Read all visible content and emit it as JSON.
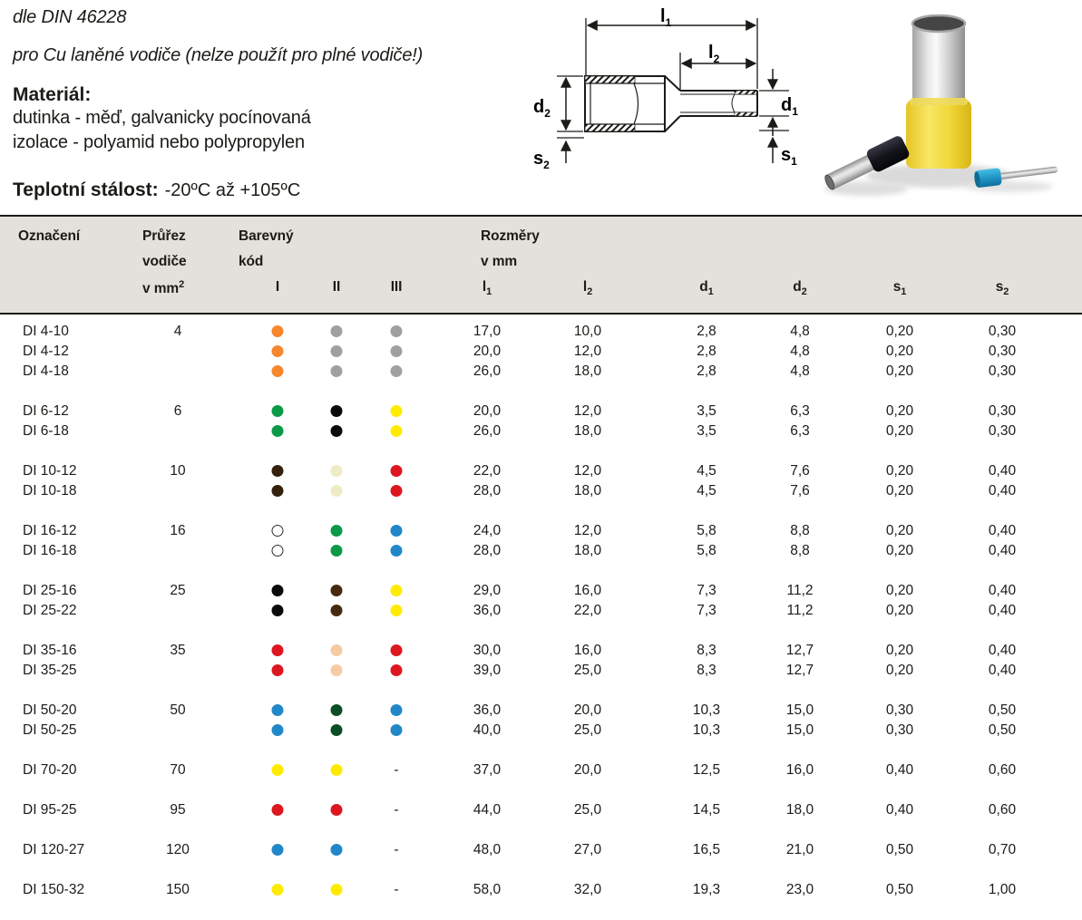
{
  "intro": {
    "din": "dle DIN 46228",
    "subtitle": "pro Cu laněné vodiče (nelze použít pro plné vodiče!)",
    "material_heading": "Materiál:",
    "material_lines": [
      "dutinka - měď, galvanicky pocínovaná",
      "izolace - polyamid nebo polypropylen"
    ],
    "temp_heading": "Teplotní stálost:",
    "temp_value": "-20ºC až +105ºC"
  },
  "diagram": {
    "l1": {
      "base": "l",
      "sub": "1"
    },
    "l2": {
      "base": "l",
      "sub": "2"
    },
    "d1": {
      "base": "d",
      "sub": "1"
    },
    "d2": {
      "base": "d",
      "sub": "2"
    },
    "s1": {
      "base": "s",
      "sub": "1"
    },
    "s2": {
      "base": "s",
      "sub": "2"
    }
  },
  "colors": {
    "orange": "#f6872f",
    "grey": "#a0a09e",
    "green": "#0a9a47",
    "black": "#0b0a08",
    "yellow": "#ffeb00",
    "dark_brown": "#33200d",
    "ivory": "#efebc4",
    "red": "#dd1620",
    "white": "#ffffff",
    "blue": "#2187c8",
    "brown": "#46290f",
    "beige": "#f6cba4",
    "dark_green": "#0b4e25"
  },
  "table": {
    "header": {
      "oznaceni": "Označení",
      "prurez": [
        "Průřez",
        "vodiče"
      ],
      "prurez_unit": "v mm",
      "prurez_unit_sup": "2",
      "barevny": [
        "Barevný",
        "kód"
      ],
      "color_subcols": [
        "I",
        "II",
        "III"
      ],
      "rozmery": [
        "Rozměry",
        "v mm"
      ],
      "dim_subcols": [
        {
          "base": "l",
          "sub": "1"
        },
        {
          "base": "l",
          "sub": "2"
        },
        {
          "base": "d",
          "sub": "1"
        },
        {
          "base": "d",
          "sub": "2"
        },
        {
          "base": "s",
          "sub": "1"
        },
        {
          "base": "s",
          "sub": "2"
        }
      ]
    },
    "groups": [
      {
        "prurez": "4",
        "rows": [
          {
            "name": "DI 4-10",
            "colors": [
              "orange",
              "grey",
              "grey"
            ],
            "values": [
              "17,0",
              "10,0",
              "2,8",
              "4,8",
              "0,20",
              "0,30"
            ]
          },
          {
            "name": "DI 4-12",
            "colors": [
              "orange",
              "grey",
              "grey"
            ],
            "values": [
              "20,0",
              "12,0",
              "2,8",
              "4,8",
              "0,20",
              "0,30"
            ]
          },
          {
            "name": "DI 4-18",
            "colors": [
              "orange",
              "grey",
              "grey"
            ],
            "values": [
              "26,0",
              "18,0",
              "2,8",
              "4,8",
              "0,20",
              "0,30"
            ]
          }
        ]
      },
      {
        "prurez": "6",
        "rows": [
          {
            "name": "DI 6-12",
            "colors": [
              "green",
              "black",
              "yellow"
            ],
            "values": [
              "20,0",
              "12,0",
              "3,5",
              "6,3",
              "0,20",
              "0,30"
            ]
          },
          {
            "name": "DI 6-18",
            "colors": [
              "green",
              "black",
              "yellow"
            ],
            "values": [
              "26,0",
              "18,0",
              "3,5",
              "6,3",
              "0,20",
              "0,30"
            ]
          }
        ]
      },
      {
        "prurez": "10",
        "rows": [
          {
            "name": "DI 10-12",
            "colors": [
              "dark_brown",
              "ivory",
              "red"
            ],
            "values": [
              "22,0",
              "12,0",
              "4,5",
              "7,6",
              "0,20",
              "0,40"
            ]
          },
          {
            "name": "DI 10-18",
            "colors": [
              "dark_brown",
              "ivory",
              "red"
            ],
            "values": [
              "28,0",
              "18,0",
              "4,5",
              "7,6",
              "0,20",
              "0,40"
            ]
          }
        ]
      },
      {
        "prurez": "16",
        "rows": [
          {
            "name": "DI 16-12",
            "colors": [
              "white",
              "green",
              "blue"
            ],
            "values": [
              "24,0",
              "12,0",
              "5,8",
              "8,8",
              "0,20",
              "0,40"
            ]
          },
          {
            "name": "DI 16-18",
            "colors": [
              "white",
              "green",
              "blue"
            ],
            "values": [
              "28,0",
              "18,0",
              "5,8",
              "8,8",
              "0,20",
              "0,40"
            ]
          }
        ]
      },
      {
        "prurez": "25",
        "rows": [
          {
            "name": "DI 25-16",
            "colors": [
              "black",
              "brown",
              "yellow"
            ],
            "values": [
              "29,0",
              "16,0",
              "7,3",
              "11,2",
              "0,20",
              "0,40"
            ]
          },
          {
            "name": "DI 25-22",
            "colors": [
              "black",
              "brown",
              "yellow"
            ],
            "values": [
              "36,0",
              "22,0",
              "7,3",
              "11,2",
              "0,20",
              "0,40"
            ]
          }
        ]
      },
      {
        "prurez": "35",
        "rows": [
          {
            "name": "DI 35-16",
            "colors": [
              "red",
              "beige",
              "red"
            ],
            "values": [
              "30,0",
              "16,0",
              "8,3",
              "12,7",
              "0,20",
              "0,40"
            ]
          },
          {
            "name": "DI 35-25",
            "colors": [
              "red",
              "beige",
              "red"
            ],
            "values": [
              "39,0",
              "25,0",
              "8,3",
              "12,7",
              "0,20",
              "0,40"
            ]
          }
        ]
      },
      {
        "prurez": "50",
        "rows": [
          {
            "name": "DI 50-20",
            "colors": [
              "blue",
              "dark_green",
              "blue"
            ],
            "values": [
              "36,0",
              "20,0",
              "10,3",
              "15,0",
              "0,30",
              "0,50"
            ]
          },
          {
            "name": "DI 50-25",
            "colors": [
              "blue",
              "dark_green",
              "blue"
            ],
            "values": [
              "40,0",
              "25,0",
              "10,3",
              "15,0",
              "0,30",
              "0,50"
            ]
          }
        ]
      },
      {
        "prurez": "70",
        "rows": [
          {
            "name": "DI 70-20",
            "colors": [
              "yellow",
              "yellow",
              "-"
            ],
            "values": [
              "37,0",
              "20,0",
              "12,5",
              "16,0",
              "0,40",
              "0,60"
            ]
          }
        ]
      },
      {
        "prurez": "95",
        "rows": [
          {
            "name": "DI 95-25",
            "colors": [
              "red",
              "red",
              "-"
            ],
            "values": [
              "44,0",
              "25,0",
              "14,5",
              "18,0",
              "0,40",
              "0,60"
            ]
          }
        ]
      },
      {
        "prurez": "120",
        "rows": [
          {
            "name": "DI 120-27",
            "colors": [
              "blue",
              "blue",
              "-"
            ],
            "values": [
              "48,0",
              "27,0",
              "16,5",
              "21,0",
              "0,50",
              "0,70"
            ]
          }
        ]
      },
      {
        "prurez": "150",
        "rows": [
          {
            "name": "DI 150-32",
            "colors": [
              "yellow",
              "yellow",
              "-"
            ],
            "values": [
              "58,0",
              "32,0",
              "19,3",
              "23,0",
              "0,50",
              "1,00"
            ]
          }
        ]
      }
    ]
  }
}
